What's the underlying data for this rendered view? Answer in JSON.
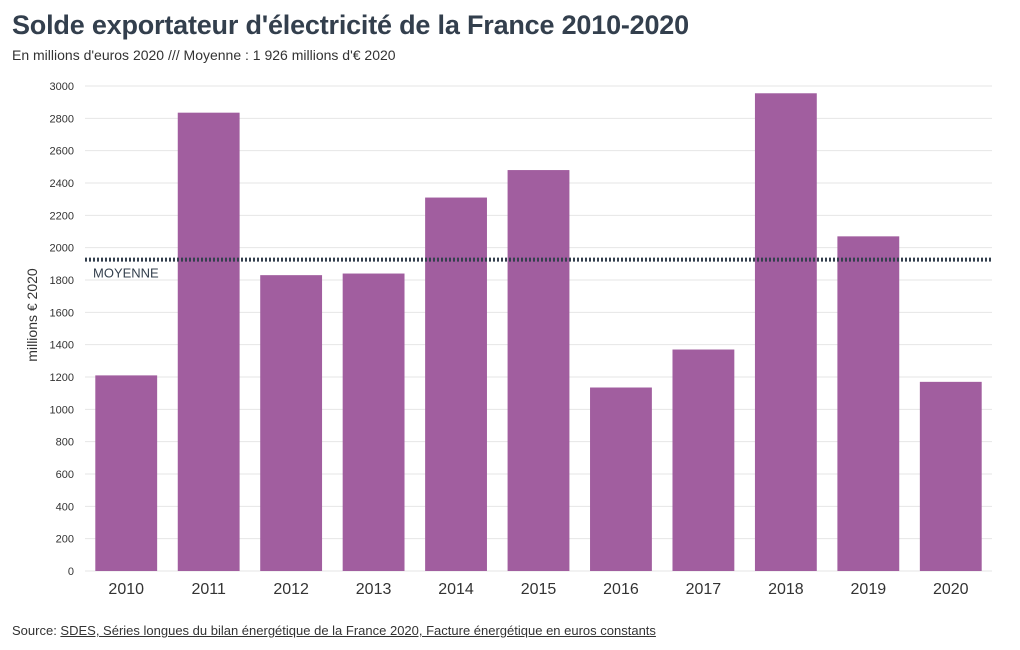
{
  "title": "Solde exportateur d'électricité de la France 2010-2020",
  "subtitle": "En millions d'euros 2020 /// Moyenne : 1 926 millions d'€ 2020",
  "source": {
    "prefix": "Source: ",
    "link_text": "SDES, Séries longues du bilan énergétique de la France 2020, Facture énergétique en euros constants"
  },
  "colors": {
    "bar": "#a15e9f",
    "average_line": "#333f4d",
    "grid": "#e6e6e6"
  },
  "chart_data": {
    "type": "bar",
    "categories": [
      "2010",
      "2011",
      "2012",
      "2013",
      "2014",
      "2015",
      "2016",
      "2017",
      "2018",
      "2019",
      "2020"
    ],
    "values": [
      1210,
      2835,
      1830,
      1840,
      2310,
      2480,
      1135,
      1370,
      2955,
      2070,
      1170
    ],
    "ylabel": "millions € 2020",
    "ylim": [
      0,
      3000
    ],
    "yticks": [
      0,
      200,
      400,
      600,
      800,
      1000,
      1200,
      1400,
      1600,
      1800,
      2000,
      2200,
      2400,
      2600,
      2800,
      3000
    ],
    "average": {
      "value": 1926,
      "label": "MOYENNE"
    },
    "grid": true
  }
}
